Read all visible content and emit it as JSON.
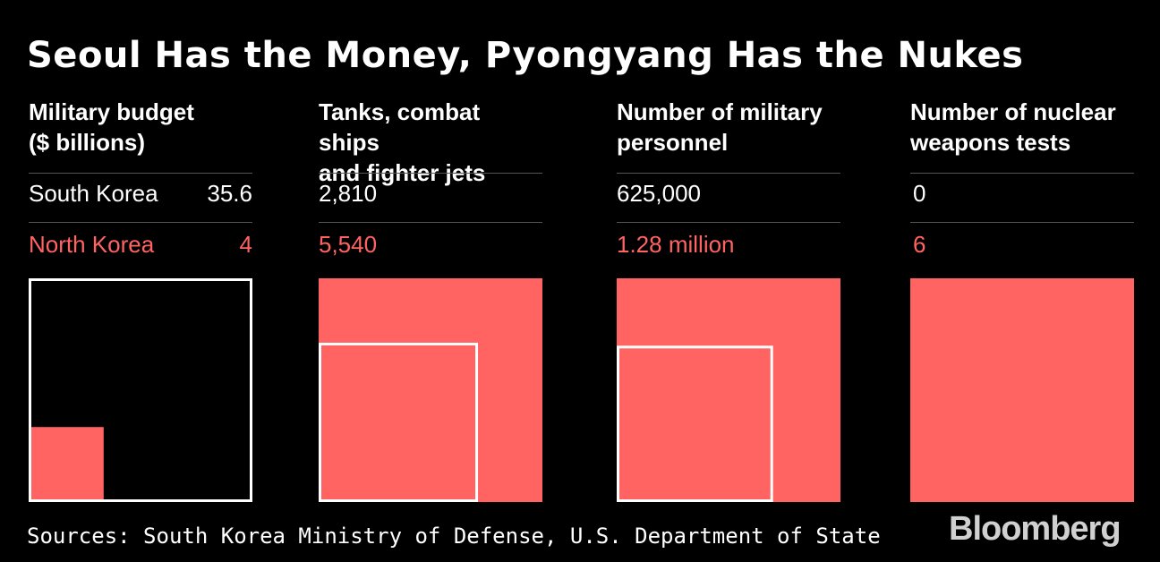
{
  "title": "Seoul Has the Money, Pyongyang Has the Nukes",
  "source": "Sources: South Korea Ministry of Defense, U.S. Department of State",
  "logo": "Bloomberg",
  "colors": {
    "background": "#000000",
    "south_korea": "#ffffff",
    "north_korea": "#ff6362"
  },
  "chart_data": [
    {
      "type": "area-comparison",
      "title": "Military budget\n($ billions)",
      "series": [
        {
          "name": "South Korea",
          "value": 35.6,
          "label": "35.6"
        },
        {
          "name": "North Korea",
          "value": 4,
          "label": "4"
        }
      ]
    },
    {
      "type": "area-comparison",
      "title": "Tanks, combat ships\nand fighter jets",
      "series": [
        {
          "name": "South Korea",
          "value": 2810,
          "label": "2,810"
        },
        {
          "name": "North Korea",
          "value": 5540,
          "label": "5,540"
        }
      ]
    },
    {
      "type": "area-comparison",
      "title": "Number of military\npersonnel",
      "series": [
        {
          "name": "South Korea",
          "value": 625000,
          "label": "625,000"
        },
        {
          "name": "North Korea",
          "value": 1280000,
          "label": "1.28 million"
        }
      ]
    },
    {
      "type": "area-comparison",
      "title": "Number of nuclear\nweapons tests",
      "series": [
        {
          "name": "South Korea",
          "value": 0,
          "label": "0"
        },
        {
          "name": "North Korea",
          "value": 6,
          "label": "6"
        }
      ]
    }
  ]
}
